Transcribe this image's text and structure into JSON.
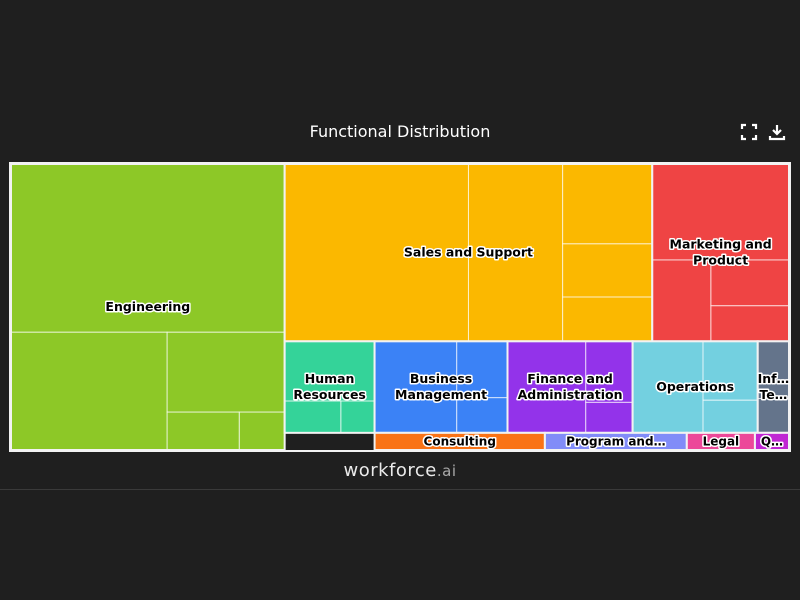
{
  "header": {
    "title": "Functional Distribution",
    "fullscreen_icon": "fullscreen-icon",
    "download_icon": "download-icon"
  },
  "brand": {
    "name": "workforce",
    "suffix": ".ai"
  },
  "colors": {
    "background": "#1f1f1f",
    "engineering": "#8dc827",
    "sales": "#fbb800",
    "marketing": "#ef4444",
    "hr": "#34d399",
    "business": "#3b82f6",
    "finance": "#9333ea",
    "operations": "#73d0e0",
    "it": "#64748b",
    "consulting": "#f97316",
    "program": "#818cf8",
    "legal": "#ec4899",
    "q": "#c026d3"
  },
  "chart_data": {
    "type": "treemap",
    "title": "Functional Distribution",
    "categories": [
      {
        "name": "Engineering",
        "label": "Engineering",
        "value": 1000,
        "color": "#8dc827",
        "children": [
          {
            "value": 588
          },
          {
            "value": 235
          },
          {
            "value": 120
          },
          {
            "value": 35
          },
          {
            "value": 22
          }
        ]
      },
      {
        "name": "Sales and Support",
        "label": "Sales and Support",
        "value": 820,
        "color": "#fbb800",
        "children": [
          {
            "value": 410
          },
          {
            "value": 210
          },
          {
            "value": 90
          },
          {
            "value": 60
          },
          {
            "value": 50
          }
        ]
      },
      {
        "name": "Marketing and Product",
        "label": "Marketing and Product",
        "value": 305,
        "color": "#ef4444",
        "children": [
          {
            "value": 165
          },
          {
            "value": 60
          },
          {
            "value": 45
          },
          {
            "value": 35
          }
        ]
      },
      {
        "name": "Human Resources",
        "label": "Human Resources",
        "value": 115,
        "color": "#34d399",
        "children": [
          {
            "value": 75
          },
          {
            "value": 25
          },
          {
            "value": 15
          }
        ]
      },
      {
        "name": "Business Management",
        "label": "Business Management",
        "value": 170,
        "color": "#3b82f6",
        "children": [
          {
            "value": 105
          },
          {
            "value": 40
          },
          {
            "value": 25
          }
        ]
      },
      {
        "name": "Finance and Administration",
        "label": "Finance and Administration",
        "value": 160,
        "color": "#9333ea",
        "children": [
          {
            "value": 100
          },
          {
            "value": 40
          },
          {
            "value": 20
          }
        ]
      },
      {
        "name": "Operations",
        "label": "Operations",
        "value": 160,
        "color": "#73d0e0",
        "children": [
          {
            "value": 90
          },
          {
            "value": 45
          },
          {
            "value": 25
          }
        ]
      },
      {
        "name": "Information Technology",
        "label": "Inf… Te…",
        "value": 40,
        "color": "#64748b",
        "children": [
          {
            "value": 25
          },
          {
            "value": 15
          }
        ]
      },
      {
        "name": "Consulting",
        "label": "Consulting",
        "value": 30,
        "color": "#f97316",
        "children": []
      },
      {
        "name": "Program and Project Management",
        "label": "Program and…",
        "value": 25,
        "color": "#818cf8",
        "children": []
      },
      {
        "name": "Legal",
        "label": "Legal",
        "value": 12,
        "color": "#ec4899",
        "children": []
      },
      {
        "name": "Quality Assurance",
        "label": "Q…",
        "value": 6,
        "color": "#c026d3",
        "children": []
      }
    ]
  }
}
